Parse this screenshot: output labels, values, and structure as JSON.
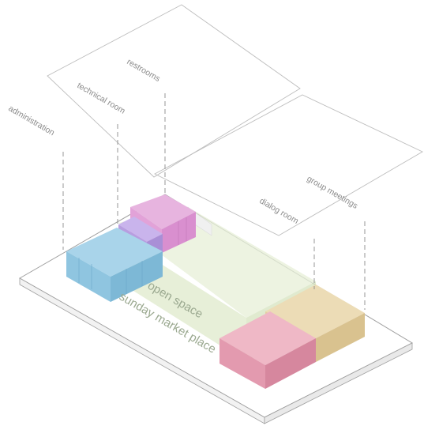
{
  "labels": {
    "administration": "administration",
    "technical_room": "technical room",
    "restrooms": "restrooms",
    "dialog_room": "dialog room",
    "group_meetings": "group meetings",
    "open_space": "open space",
    "sunday_market_place": "sunday market place"
  },
  "colors": {
    "administration": "#8fc5e0",
    "restrooms": "#d98fcf",
    "technical_room": "#b79ee0",
    "open_space": "#e7f0d8",
    "dialog_room": "#e39aaf",
    "group_meetings": "#d9c28f",
    "outline": "#bdbdbd"
  }
}
